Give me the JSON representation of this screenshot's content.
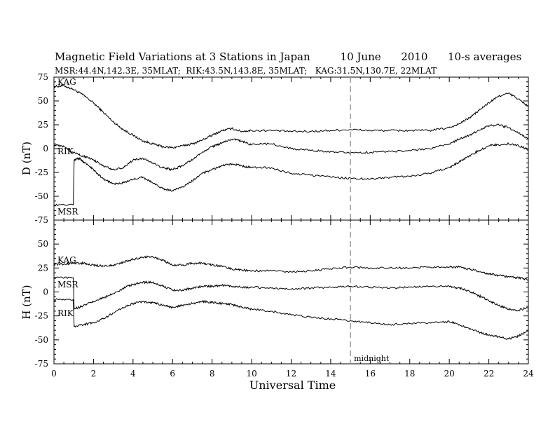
{
  "header": {
    "title": "Magnetic Field Variations at 3 Stations in Japan         10 June      2010      10-s averages",
    "subtitle": "MSR:44.4N,142.3E, 35MLAT;  RIK:43.5N,143.8E, 35MLAT;   KAG:31.5N,130.7E, 22MLAT"
  },
  "chart_data": [
    {
      "type": "line",
      "panel": "top",
      "ylabel": "D (nT)",
      "ylim": [
        -75,
        75
      ],
      "yticks": [
        75,
        50,
        25,
        0,
        -25,
        -50,
        -75
      ],
      "xlim": [
        0,
        24
      ],
      "series": [
        {
          "name": "KAG",
          "x": [
            0,
            0.5,
            1,
            1.5,
            2,
            2.5,
            3,
            3.5,
            4,
            4.5,
            5,
            5.5,
            6,
            6.5,
            7,
            7.5,
            8,
            8.5,
            9,
            9.5,
            10,
            11,
            12,
            13,
            14,
            15,
            16,
            17,
            18,
            19,
            20,
            20.5,
            21,
            21.5,
            22,
            22.5,
            23,
            23.5,
            24
          ],
          "values": [
            65,
            66,
            62,
            56,
            48,
            38,
            28,
            20,
            14,
            8,
            5,
            2,
            1,
            3,
            5,
            9,
            14,
            19,
            21,
            18,
            19,
            19,
            18,
            18,
            19,
            20,
            19,
            19,
            19,
            19,
            22,
            26,
            32,
            40,
            48,
            55,
            58,
            52,
            44
          ]
        },
        {
          "name": "RIK",
          "x": [
            0,
            0.5,
            1,
            1.5,
            2,
            2.5,
            3,
            3.5,
            4,
            4.5,
            5,
            5.5,
            6,
            6.5,
            7,
            7.5,
            8,
            8.5,
            9,
            9.5,
            10,
            11,
            12,
            13,
            14,
            15,
            16,
            17,
            18,
            19,
            20,
            20.5,
            21,
            21.5,
            22,
            22.5,
            23,
            23.5,
            24
          ],
          "values": [
            4,
            2,
            -4,
            -8,
            -12,
            -18,
            -22,
            -20,
            -12,
            -10,
            -15,
            -20,
            -22,
            -18,
            -12,
            -4,
            2,
            6,
            10,
            8,
            4,
            5,
            0,
            -2,
            -3,
            -4,
            -4,
            -3,
            -2,
            0,
            5,
            10,
            14,
            19,
            24,
            25,
            22,
            16,
            10
          ]
        },
        {
          "name": "MSR",
          "x": [
            0,
            0.98,
            1.02,
            1.3,
            1.5,
            2,
            2.5,
            3,
            3.5,
            4,
            4.5,
            5,
            5.5,
            6,
            6.5,
            7,
            7.5,
            8,
            8.5,
            9,
            9.5,
            10,
            11,
            12,
            13,
            14,
            15,
            16,
            17,
            18,
            19,
            20,
            20.5,
            21,
            21.5,
            22,
            22.5,
            23,
            23.5,
            24
          ],
          "values": [
            -59,
            -59,
            -12,
            -10,
            -14,
            -22,
            -32,
            -37,
            -36,
            -32,
            -30,
            -36,
            -42,
            -44,
            -40,
            -34,
            -26,
            -22,
            -18,
            -16,
            -18,
            -20,
            -20,
            -26,
            -28,
            -30,
            -31,
            -32,
            -30,
            -29,
            -26,
            -20,
            -14,
            -8,
            -2,
            3,
            4,
            5,
            3,
            -1
          ]
        }
      ]
    },
    {
      "type": "line",
      "panel": "bottom",
      "ylabel": "H (nT)",
      "ylim": [
        -75,
        75
      ],
      "yticks": [
        75,
        50,
        25,
        0,
        -25,
        -50,
        -75
      ],
      "xlim": [
        0,
        24
      ],
      "xlabel": "Universal Time",
      "xticks": [
        0,
        2,
        4,
        6,
        8,
        10,
        12,
        14,
        16,
        18,
        20,
        22,
        24
      ],
      "midnight_x": 15,
      "midnight_label": "midnight",
      "series": [
        {
          "name": "KAG",
          "x": [
            0,
            0.5,
            1,
            1.5,
            2,
            2.5,
            3,
            3.5,
            4,
            4.5,
            5,
            5.5,
            6,
            6.5,
            7,
            7.5,
            8,
            8.5,
            9,
            9.5,
            10,
            11,
            12,
            13,
            14,
            15,
            16,
            17,
            18,
            19,
            20,
            20.5,
            21,
            21.5,
            22,
            22.5,
            23,
            23.5,
            24
          ],
          "values": [
            29,
            29,
            30,
            30,
            28,
            27,
            28,
            31,
            34,
            36,
            37,
            33,
            28,
            28,
            30,
            30,
            28,
            27,
            24,
            23,
            22,
            22,
            21,
            22,
            24,
            26,
            25,
            25,
            25,
            26,
            26,
            26,
            24,
            21,
            19,
            17,
            16,
            15,
            13
          ]
        },
        {
          "name": "MSR",
          "x": [
            0,
            0.98,
            1.02,
            1.5,
            2,
            2.5,
            3,
            3.5,
            4,
            4.5,
            5,
            5.5,
            6,
            6.5,
            7,
            7.5,
            8,
            8.5,
            9,
            9.5,
            10,
            11,
            12,
            13,
            14,
            15,
            16,
            17,
            18,
            19,
            20,
            20.5,
            21,
            21.5,
            22,
            22.5,
            23,
            23.5,
            24
          ],
          "values": [
            15,
            15,
            -18,
            -14,
            -10,
            -6,
            -2,
            4,
            8,
            10,
            10,
            6,
            2,
            2,
            4,
            6,
            6,
            7,
            6,
            5,
            5,
            4,
            3,
            4,
            5,
            6,
            5,
            4,
            5,
            6,
            6,
            4,
            1,
            -4,
            -9,
            -14,
            -18,
            -19,
            -16
          ]
        },
        {
          "name": "RIK",
          "x": [
            0,
            0.98,
            1.02,
            1.5,
            2,
            2.5,
            3,
            3.5,
            4,
            4.5,
            5,
            5.5,
            6,
            6.5,
            7,
            7.5,
            8,
            8.5,
            9,
            9.5,
            10,
            11,
            12,
            13,
            14,
            15,
            16,
            17,
            18,
            19,
            20,
            20.5,
            21,
            21.5,
            22,
            22.5,
            23,
            23.5,
            24
          ],
          "values": [
            -8,
            -8,
            -36,
            -34,
            -32,
            -28,
            -22,
            -16,
            -12,
            -10,
            -11,
            -14,
            -16,
            -14,
            -12,
            -10,
            -11,
            -12,
            -13,
            -16,
            -18,
            -20,
            -24,
            -26,
            -28,
            -30,
            -32,
            -34,
            -33,
            -32,
            -31,
            -34,
            -38,
            -42,
            -45,
            -47,
            -49,
            -46,
            -40
          ]
        }
      ]
    }
  ]
}
